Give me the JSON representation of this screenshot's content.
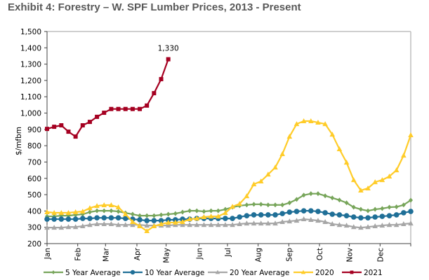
{
  "title": "Exhibit 4: Forestry – W. SPF Lumber Prices, 2013 - Present",
  "chart_data": {
    "type": "line",
    "title": "Exhibit 4: Forestry – W. SPF Lumber Prices, 2013 - Present",
    "xlabel": "",
    "ylabel": "$/mfbm",
    "ylim": [
      200,
      1500
    ],
    "yticks": [
      200,
      300,
      400,
      500,
      600,
      700,
      800,
      900,
      1000,
      1100,
      1200,
      1300,
      1400,
      1500
    ],
    "ytick_labels": [
      "200",
      "300",
      "400",
      "500",
      "600",
      "700",
      "800",
      "900",
      "1,000",
      "1,100",
      "1,200",
      "1,300",
      "1,400",
      "1,500"
    ],
    "x_unit": "week of year",
    "xlim": [
      0,
      51
    ],
    "month_ticks": [
      {
        "label": "Jan",
        "week": 0
      },
      {
        "label": "Feb",
        "week": 4.3
      },
      {
        "label": "Mar",
        "week": 8.2
      },
      {
        "label": "Apr",
        "week": 12.6
      },
      {
        "label": "May",
        "week": 16.7
      },
      {
        "label": "Jun",
        "week": 21.3
      },
      {
        "label": "Jul",
        "week": 25.3
      },
      {
        "label": "Aug",
        "week": 29.6
      },
      {
        "label": "Sep",
        "week": 33.9
      },
      {
        "label": "Oct",
        "week": 38.2
      },
      {
        "label": "Nov",
        "week": 42.4
      },
      {
        "label": "Dec",
        "week": 46.7
      }
    ],
    "grid": false,
    "legend_position": "bottom",
    "annotations": [
      {
        "text": "1,330",
        "series": "2021",
        "week": 17
      }
    ],
    "series": [
      {
        "name": "5 Year Average",
        "color": "#77A55A",
        "marker": "diamond",
        "values": [
          367,
          367,
          371,
          371,
          376,
          380,
          393,
          401,
          401,
          401,
          397,
          388,
          380,
          371,
          371,
          371,
          376,
          380,
          384,
          393,
          401,
          401,
          397,
          401,
          401,
          410,
          423,
          432,
          437,
          441,
          441,
          437,
          437,
          437,
          450,
          471,
          497,
          506,
          506,
          493,
          480,
          467,
          450,
          423,
          410,
          401,
          410,
          415,
          423,
          425,
          437,
          466
        ]
      },
      {
        "name": "10 Year Average",
        "color": "#1F6F97",
        "marker": "circle",
        "values": [
          350,
          350,
          350,
          350,
          350,
          354,
          354,
          358,
          358,
          358,
          358,
          354,
          350,
          346,
          341,
          341,
          341,
          346,
          346,
          350,
          350,
          354,
          354,
          354,
          354,
          354,
          354,
          363,
          371,
          376,
          376,
          376,
          376,
          384,
          393,
          397,
          401,
          401,
          397,
          389,
          380,
          376,
          371,
          363,
          358,
          358,
          363,
          367,
          371,
          376,
          389,
          397
        ]
      },
      {
        "name": "20 Year Average",
        "color": "#A6A6A6",
        "marker": "triangle",
        "values": [
          298,
          298,
          298,
          302,
          302,
          307,
          315,
          320,
          320,
          320,
          315,
          315,
          315,
          315,
          311,
          311,
          311,
          311,
          315,
          315,
          315,
          315,
          315,
          315,
          315,
          315,
          315,
          320,
          324,
          324,
          324,
          324,
          324,
          333,
          337,
          341,
          350,
          346,
          341,
          333,
          320,
          315,
          311,
          302,
          298,
          302,
          307,
          311,
          315,
          315,
          320,
          324
        ]
      },
      {
        "name": "2020",
        "color": "#FFCC29",
        "marker": "triangle",
        "values": [
          393,
          389,
          389,
          389,
          393,
          397,
          418,
          431,
          436,
          436,
          423,
          380,
          333,
          307,
          277,
          307,
          320,
          329,
          329,
          333,
          350,
          354,
          363,
          367,
          367,
          388,
          427,
          444,
          491,
          564,
          582,
          624,
          667,
          749,
          856,
          933,
          951,
          951,
          942,
          933,
          869,
          779,
          697,
          590,
          526,
          539,
          577,
          590,
          612,
          650,
          740,
          865
        ]
      },
      {
        "name": "2021",
        "color": "#A50021",
        "marker": "square",
        "values": [
          903,
          916,
          925,
          886,
          856,
          925,
          946,
          977,
          1002,
          1025,
          1025,
          1025,
          1025,
          1025,
          1046,
          1122,
          1208,
          1330
        ]
      }
    ]
  }
}
